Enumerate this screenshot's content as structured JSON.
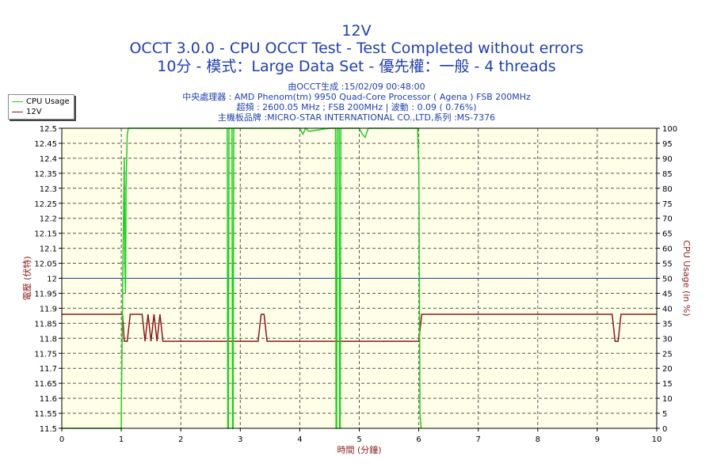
{
  "header": {
    "title": "12V",
    "line2": "OCCT 3.0.0 - CPU OCCT Test - Test Completed without errors",
    "line3": "10分 - 模式：Large Data Set - 優先權：一般 - 4 threads",
    "info1": "由OCCT生成 :15/02/09 00:48:00",
    "info2": "中央處理器 : AMD Phenom(tm) 9950 Quad-Core Processor ( Agena ) FSB 200MHz",
    "info3": "超頻 : 2600.05 MHz ; FSB 200MHz | 波動 : 0.09 ( 0.76%)",
    "info4": "主機板品牌 :MICRO-STAR INTERNATIONAL CO.,LTD,系列 :MS-7376"
  },
  "legend": {
    "items": [
      {
        "label": "CPU Usage",
        "color": "#22cc22"
      },
      {
        "label": "12V",
        "color": "#8b1a1a"
      }
    ]
  },
  "colors": {
    "title": "#1f3fae",
    "plot_bg": "#ffffe8",
    "grid": "#555555",
    "cpu": "#22cc22",
    "voltage": "#8b1a1a",
    "reference": "#1f3fae"
  },
  "chart_data": {
    "type": "line",
    "xlabel": "時間 (分鐘)",
    "ylabel": "電壓 (伏特)",
    "y2label": "CPU Usage (in %)",
    "xlim": [
      0,
      10
    ],
    "ylim": [
      11.5,
      12.5
    ],
    "y2lim": [
      0,
      100
    ],
    "xticks": [
      "0",
      "1",
      "2",
      "3",
      "4",
      "5",
      "6",
      "7",
      "8",
      "9",
      "10"
    ],
    "yticks": [
      "11.5",
      "11.55",
      "11.6",
      "11.65",
      "11.7",
      "11.75",
      "11.8",
      "11.85",
      "11.9",
      "11.95",
      "12",
      "12.05",
      "12.1",
      "12.15",
      "12.2",
      "12.25",
      "12.3",
      "12.35",
      "12.4",
      "12.45",
      "12.5"
    ],
    "y2ticks": [
      "0",
      "5",
      "10",
      "15",
      "20",
      "25",
      "30",
      "35",
      "40",
      "45",
      "50",
      "55",
      "60",
      "65",
      "70",
      "75",
      "80",
      "85",
      "90",
      "95",
      "100"
    ],
    "grid": true,
    "reference_line": 12,
    "series": [
      {
        "name": "CPU Usage",
        "axis": "right",
        "x": [
          0,
          1.0,
          1.0,
          1.02,
          1.03,
          1.05,
          1.06,
          1.07,
          1.08,
          1.1,
          1.12,
          1.15,
          1.2,
          1.5,
          2.0,
          2.5,
          2.78,
          2.79,
          2.8,
          2.81,
          2.86,
          2.87,
          2.88,
          2.89,
          3.0,
          3.5,
          4.0,
          4.05,
          4.1,
          4.15,
          4.5,
          4.6,
          4.61,
          4.62,
          4.63,
          4.66,
          4.67,
          4.68,
          4.69,
          5.0,
          5.05,
          5.1,
          5.15,
          5.5,
          5.98,
          6.0,
          6.01,
          6.02,
          6.04
        ],
        "y": [
          0,
          0,
          5,
          40,
          60,
          90,
          55,
          45,
          80,
          98,
          100,
          100,
          100,
          100,
          100,
          100,
          100,
          0,
          0,
          100,
          100,
          0,
          0,
          100,
          100,
          100,
          100,
          98,
          100,
          99,
          100,
          100,
          0,
          0,
          100,
          100,
          0,
          0,
          100,
          100,
          98,
          97,
          100,
          100,
          100,
          88,
          50,
          5,
          0
        ]
      },
      {
        "name": "12V",
        "axis": "left",
        "x": [
          0,
          1.02,
          1.05,
          1.1,
          1.15,
          1.35,
          1.4,
          1.45,
          1.5,
          1.55,
          1.6,
          1.65,
          1.7,
          1.72,
          2.0,
          3.3,
          3.35,
          3.4,
          3.45,
          5.0,
          6.0,
          6.05,
          6.1,
          7.0,
          9.25,
          9.3,
          9.35,
          9.4,
          10
        ],
        "y": [
          11.88,
          11.88,
          11.79,
          11.79,
          11.88,
          11.88,
          11.79,
          11.88,
          11.79,
          11.88,
          11.79,
          11.88,
          11.79,
          11.79,
          11.79,
          11.79,
          11.88,
          11.88,
          11.79,
          11.79,
          11.79,
          11.88,
          11.88,
          11.88,
          11.88,
          11.79,
          11.79,
          11.88,
          11.88
        ]
      }
    ]
  }
}
